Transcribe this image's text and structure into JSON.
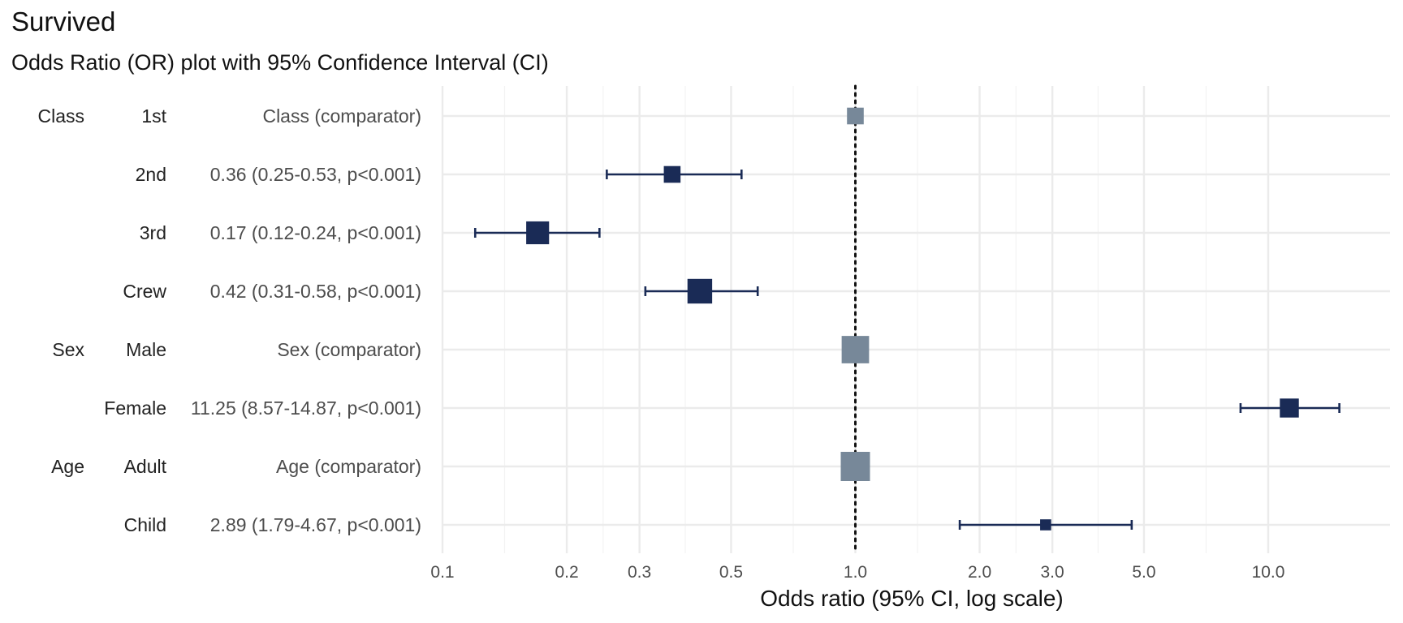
{
  "chart_data": {
    "type": "forest",
    "title": "Survived",
    "subtitle": "Odds Ratio (OR) plot with 95% Confidence Interval (CI)",
    "xlabel": "Odds ratio (95% CI, log scale)",
    "x_scale": "log",
    "xlim": [
      0.1,
      20
    ],
    "x_ticks": [
      0.1,
      0.2,
      0.3,
      0.5,
      1.0,
      2.0,
      3.0,
      5.0,
      10.0
    ],
    "x_tick_labels": [
      "0.1",
      "0.2",
      "0.3",
      "0.5",
      "1.0",
      "2.0",
      "3.0",
      "5.0",
      "10.0"
    ],
    "reference_line": 1.0,
    "grid": true,
    "colors": {
      "estimate": "#1a2b56",
      "comparator": "#778899",
      "grid": "#ebebeb"
    },
    "rows": [
      {
        "group": "Class",
        "level": "1st",
        "label": "Class (comparator)",
        "or": 1.0,
        "comparator": true,
        "weight": 0.45
      },
      {
        "group": "",
        "level": "2nd",
        "label": "0.36 (0.25-0.53, p<0.001)",
        "or": 0.36,
        "lower": 0.25,
        "upper": 0.53,
        "comparator": false,
        "weight": 0.45
      },
      {
        "group": "",
        "level": "3rd",
        "label": "0.17 (0.12-0.24, p<0.001)",
        "or": 0.17,
        "lower": 0.12,
        "upper": 0.24,
        "comparator": false,
        "weight": 0.72
      },
      {
        "group": "",
        "level": "Crew",
        "label": "0.42 (0.31-0.58, p<0.001)",
        "or": 0.42,
        "lower": 0.31,
        "upper": 0.58,
        "comparator": false,
        "weight": 0.8
      },
      {
        "group": "Sex",
        "level": "Male",
        "label": "Sex (comparator)",
        "or": 1.0,
        "comparator": true,
        "weight": 0.92
      },
      {
        "group": "",
        "level": "Female",
        "label": "11.25 (8.57-14.87, p<0.001)",
        "or": 11.25,
        "lower": 8.57,
        "upper": 14.87,
        "comparator": false,
        "weight": 0.55
      },
      {
        "group": "Age",
        "level": "Adult",
        "label": "Age (comparator)",
        "or": 1.0,
        "comparator": true,
        "weight": 1.0
      },
      {
        "group": "",
        "level": "Child",
        "label": "2.89 (1.79-4.67, p<0.001)",
        "or": 2.89,
        "lower": 1.79,
        "upper": 4.67,
        "comparator": false,
        "weight": 0.2
      }
    ]
  }
}
